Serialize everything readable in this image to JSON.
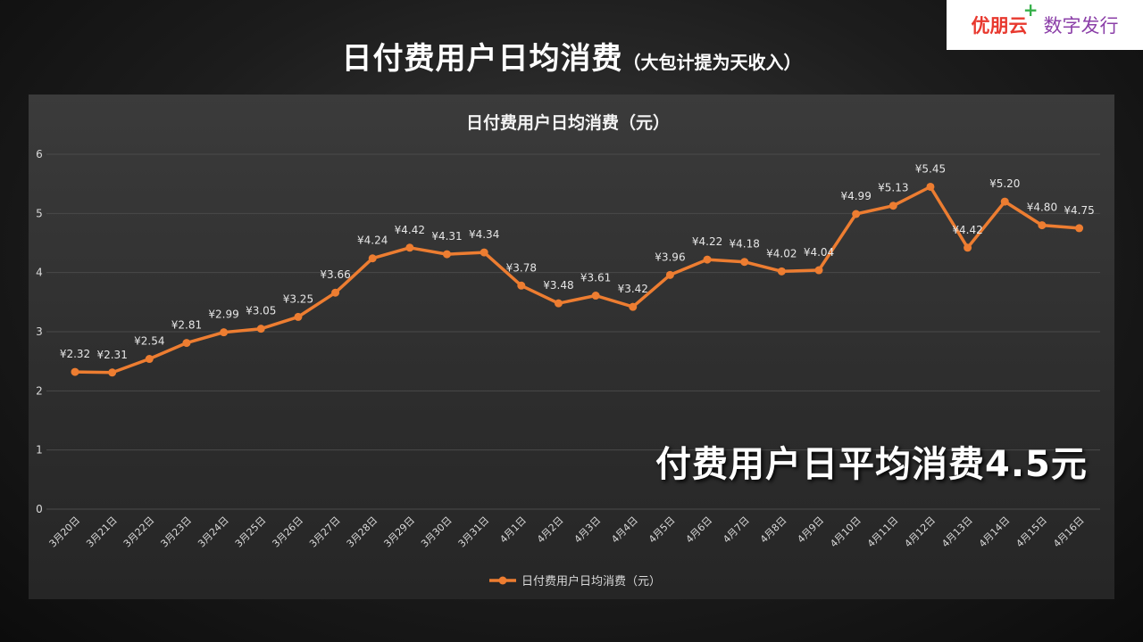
{
  "slide": {
    "title": "日付费用户日均消费",
    "subtitle": "（大包计提为天收入）",
    "callout": "付费用户日平均消费4.5元"
  },
  "logo": {
    "brand": "优朋云",
    "plus": "+",
    "tagline": "数字发行",
    "colors": {
      "brand": "#e8382e",
      "plus": "#36b04a",
      "tagline": "#8b3fa8"
    }
  },
  "chart_data": {
    "type": "line",
    "title": "日付费用户日均消费（元）",
    "categories": [
      "3月20日",
      "3月21日",
      "3月22日",
      "3月23日",
      "3月24日",
      "3月25日",
      "3月26日",
      "3月27日",
      "3月28日",
      "3月29日",
      "3月30日",
      "3月31日",
      "4月1日",
      "4月2日",
      "4月3日",
      "4月4日",
      "4月5日",
      "4月6日",
      "4月7日",
      "4月8日",
      "4月9日",
      "4月10日",
      "4月11日",
      "4月12日",
      "4月13日",
      "4月14日",
      "4月15日",
      "4月16日"
    ],
    "series": [
      {
        "name": "日付费用户日均消费（元）",
        "values": [
          2.32,
          2.31,
          2.54,
          2.81,
          2.99,
          3.05,
          3.25,
          3.66,
          4.24,
          4.42,
          4.31,
          4.34,
          3.78,
          3.48,
          3.61,
          3.42,
          3.96,
          4.22,
          4.18,
          4.02,
          4.04,
          4.99,
          5.13,
          5.45,
          4.42,
          5.2,
          4.8,
          4.75
        ],
        "labels": [
          "¥2.32",
          "¥2.31",
          "¥2.54",
          "¥2.81",
          "¥2.99",
          "¥3.05",
          "¥3.25",
          "¥3.66",
          "¥4.24",
          "¥4.42",
          "¥4.31",
          "¥4.34",
          "¥3.78",
          "¥3.48",
          "¥3.61",
          "¥3.42",
          "¥3.96",
          "¥4.22",
          "¥4.18",
          "¥4.02",
          "¥4.04",
          "¥4.99",
          "¥5.13",
          "¥5.45",
          "¥4.42",
          "¥5.20",
          "¥4.80",
          "¥4.75"
        ],
        "color": "#ed7d31"
      }
    ],
    "ylim": [
      0,
      6
    ],
    "yticks": [
      "0",
      "1",
      "2",
      "3",
      "4",
      "5",
      "6"
    ],
    "grid": true,
    "legend": "bottom"
  }
}
